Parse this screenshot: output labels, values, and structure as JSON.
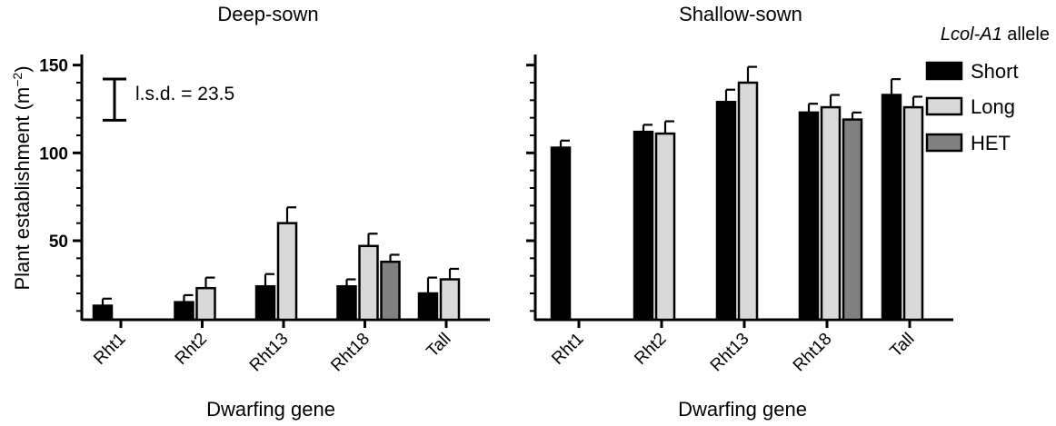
{
  "ylabel": "Plant establishment (m",
  "ylabel_sup": "−2",
  "ylabel_close": ")",
  "legend": {
    "title_italic": "Lcol-A1",
    "title_rest": " allele",
    "entries": [
      {
        "label": "Short",
        "color": "#000000"
      },
      {
        "label": "Long",
        "color": "#d9d9d9"
      },
      {
        "label": "HET",
        "color": "#808080"
      }
    ]
  },
  "lsd": {
    "label": "l.s.d. = 23.5",
    "value": 23.5
  },
  "chart_data": [
    {
      "type": "bar",
      "title": "Deep-sown",
      "xlabel": "Dwarfing gene",
      "ylabel": "Plant establishment (m−2)",
      "categories": [
        "Rht1",
        "Rht2",
        "Rht13",
        "Rht18",
        "Tall"
      ],
      "ylim": [
        5,
        155
      ],
      "yticks": [
        50,
        100,
        150
      ],
      "series": [
        {
          "name": "Short",
          "color": "#000000",
          "values": [
            13,
            15,
            24,
            24,
            20
          ],
          "errors": [
            4,
            4,
            7,
            4,
            9
          ]
        },
        {
          "name": "Long",
          "color": "#d9d9d9",
          "values": [
            null,
            23,
            60,
            47,
            28
          ],
          "errors": [
            null,
            6,
            9,
            7,
            6
          ]
        },
        {
          "name": "HET",
          "color": "#808080",
          "values": [
            null,
            null,
            null,
            38,
            null
          ],
          "errors": [
            null,
            null,
            null,
            4,
            null
          ]
        }
      ]
    },
    {
      "type": "bar",
      "title": "Shallow-sown",
      "xlabel": "Dwarfing gene",
      "ylabel": "",
      "categories": [
        "Rht1",
        "Rht2",
        "Rht13",
        "Rht18",
        "Tall"
      ],
      "ylim": [
        5,
        155
      ],
      "yticks": [
        50,
        100,
        150
      ],
      "series": [
        {
          "name": "Short",
          "color": "#000000",
          "values": [
            103,
            112,
            129,
            123,
            133
          ],
          "errors": [
            4,
            4,
            7,
            5,
            9
          ]
        },
        {
          "name": "Long",
          "color": "#d9d9d9",
          "values": [
            null,
            111,
            140,
            126,
            126
          ],
          "errors": [
            null,
            7,
            9,
            7,
            6
          ]
        },
        {
          "name": "HET",
          "color": "#808080",
          "values": [
            null,
            null,
            null,
            119,
            null
          ],
          "errors": [
            null,
            null,
            null,
            4,
            null
          ]
        }
      ]
    }
  ]
}
